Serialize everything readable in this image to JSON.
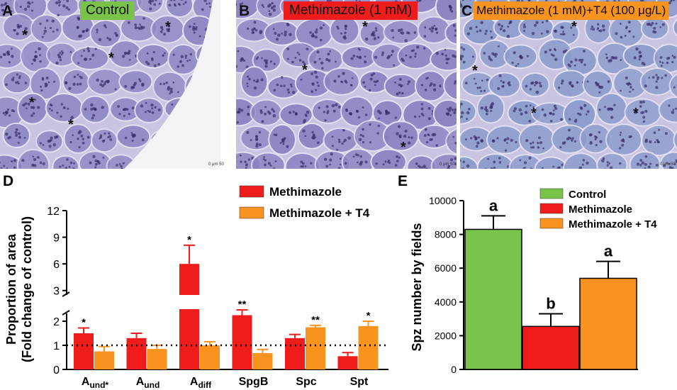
{
  "panels": {
    "A": {
      "letter": "A",
      "label": "Control",
      "label_color": "#79c34a",
      "scale": "0 μm 50",
      "tint": "#8e87c4"
    },
    "B": {
      "letter": "B",
      "label": "Methimazole (1 mM)",
      "label_color": "#ef1c1c",
      "scale": "0 μm 50",
      "tint": "#8d82c2"
    },
    "C": {
      "letter": "C",
      "label": "Methimazole (1 mM)+T4 (100 μg/L)",
      "label_color": "#f7931e",
      "scale": "0 μm 50",
      "tint": "#8b9ccc"
    },
    "star": "*"
  },
  "chart_data": [
    {
      "panel": "D",
      "type": "bar",
      "ylabel_line1": "Proportion of area",
      "ylabel_line2": "(Fold change of control)",
      "categories": [
        {
          "base": "A",
          "sub": "und*"
        },
        {
          "base": "A",
          "sub": "und"
        },
        {
          "base": "A",
          "sub": "diff"
        },
        {
          "base": "SpgB",
          "sub": ""
        },
        {
          "base": "Spc",
          "sub": ""
        },
        {
          "base": "Spt",
          "sub": ""
        }
      ],
      "series": [
        {
          "name": "Methimazole",
          "color": "#ef1c1c",
          "values": [
            1.5,
            1.3,
            6.0,
            2.25,
            1.3,
            0.55
          ],
          "errors": [
            0.22,
            0.2,
            2.1,
            0.22,
            0.15,
            0.15
          ],
          "signif": [
            "*",
            "",
            "*",
            "**",
            "",
            ""
          ]
        },
        {
          "name": "Methimazole + T4",
          "color": "#f7931e",
          "values": [
            0.75,
            0.85,
            1.0,
            0.68,
            1.75,
            1.8
          ],
          "errors": [
            0.2,
            0.15,
            0.15,
            0.15,
            0.08,
            0.2
          ],
          "signif": [
            "",
            "",
            "",
            "",
            "**",
            "*"
          ]
        }
      ],
      "axis_break": {
        "lower": [
          0,
          2.5
        ],
        "upper": [
          2.5,
          12
        ]
      },
      "yticks_lower": [
        0,
        1,
        2
      ],
      "yticks_upper": [
        3,
        6,
        9,
        12
      ],
      "reference_line": 1
    },
    {
      "panel": "E",
      "type": "bar",
      "ylabel": "Spz number  by fields",
      "categories": [
        "Control",
        "Methimazole",
        "Methimazole + T4"
      ],
      "values": [
        8300,
        2550,
        5400
      ],
      "errors": [
        800,
        750,
        1000
      ],
      "colors": [
        "#79c34a",
        "#ef1c1c",
        "#f7931e"
      ],
      "letters": [
        "a",
        "b",
        "a"
      ],
      "ylim": [
        0,
        10000
      ],
      "yticks": [
        0,
        2000,
        4000,
        6000,
        8000,
        10000
      ],
      "legend": [
        "Control",
        "Methimazole",
        "Methimazole + T4"
      ]
    }
  ]
}
